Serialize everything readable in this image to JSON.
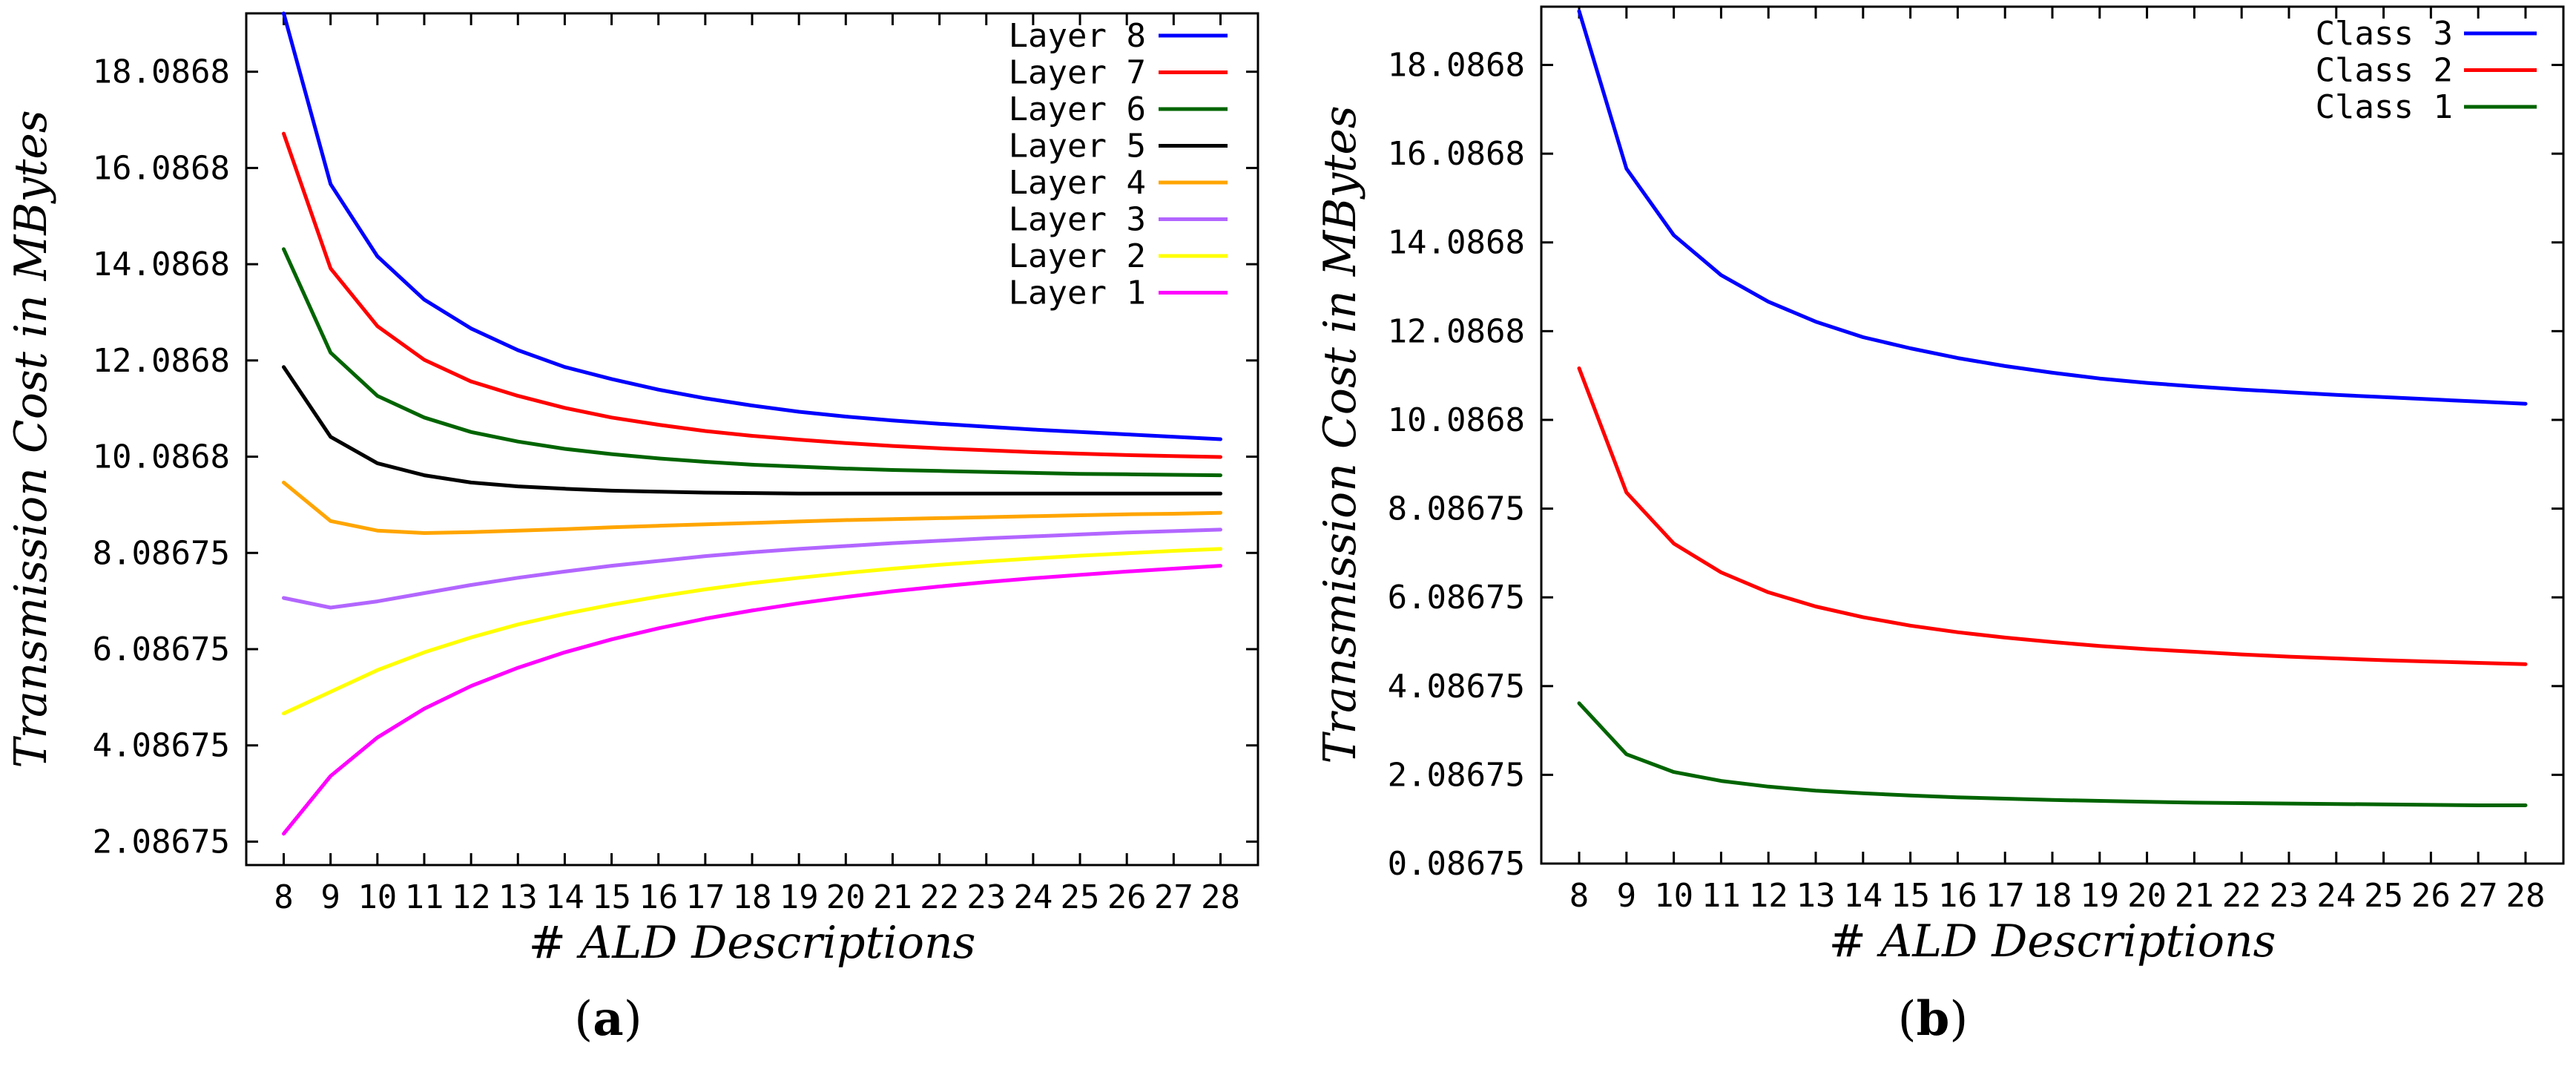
{
  "chart_data": [
    {
      "panel_caption": {
        "open": "(",
        "letter": "a",
        "close": ")"
      },
      "type": "line",
      "xlabel": "# ALD Descriptions",
      "ylabel": "Transmission Cost in MBytes",
      "xlim": [
        7.2,
        28.8
      ],
      "ylim": [
        1.6,
        19.3
      ],
      "x": [
        8,
        9,
        10,
        11,
        12,
        13,
        14,
        15,
        16,
        17,
        18,
        19,
        20,
        21,
        22,
        23,
        24,
        25,
        26,
        27,
        28
      ],
      "x_tick_labels": [
        "8",
        "9",
        "10",
        "11",
        "12",
        "13",
        "14",
        "15",
        "16",
        "17",
        "18",
        "19",
        "20",
        "21",
        "22",
        "23",
        "24",
        "25",
        "26",
        "27",
        "28"
      ],
      "y_ticks": [
        {
          "value": 2.08675,
          "label": "2.08675"
        },
        {
          "value": 4.08675,
          "label": "4.08675"
        },
        {
          "value": 6.08675,
          "label": "6.08675"
        },
        {
          "value": 8.08675,
          "label": "8.08675"
        },
        {
          "value": 10.0868,
          "label": "10.0868"
        },
        {
          "value": 12.0868,
          "label": "12.0868"
        },
        {
          "value": 14.0868,
          "label": "14.0868"
        },
        {
          "value": 16.0868,
          "label": "16.0868"
        },
        {
          "value": 18.0868,
          "label": "18.0868"
        }
      ],
      "legend_position": "top-right",
      "series": [
        {
          "name": "Layer 8",
          "color": "#0000ff",
          "values": [
            19.3,
            15.75,
            14.25,
            13.35,
            12.75,
            12.3,
            11.95,
            11.7,
            11.48,
            11.3,
            11.15,
            11.02,
            10.92,
            10.84,
            10.77,
            10.71,
            10.65,
            10.6,
            10.55,
            10.5,
            10.45
          ]
        },
        {
          "name": "Layer 7",
          "color": "#ff0000",
          "values": [
            16.8,
            14.0,
            12.8,
            12.1,
            11.65,
            11.35,
            11.1,
            10.9,
            10.75,
            10.62,
            10.52,
            10.44,
            10.37,
            10.31,
            10.26,
            10.22,
            10.18,
            10.15,
            10.12,
            10.1,
            10.08
          ]
        },
        {
          "name": "Layer 6",
          "color": "#006400",
          "values": [
            14.4,
            12.25,
            11.35,
            10.9,
            10.6,
            10.4,
            10.25,
            10.14,
            10.05,
            9.98,
            9.92,
            9.88,
            9.84,
            9.81,
            9.79,
            9.77,
            9.75,
            9.73,
            9.72,
            9.71,
            9.7
          ]
        },
        {
          "name": "Layer 5",
          "color": "#000000",
          "values": [
            11.95,
            10.5,
            9.95,
            9.7,
            9.55,
            9.47,
            9.42,
            9.38,
            9.36,
            9.34,
            9.33,
            9.32,
            9.32,
            9.32,
            9.32,
            9.32,
            9.32,
            9.32,
            9.32,
            9.32,
            9.32
          ]
        },
        {
          "name": "Layer 4",
          "color": "#ffa500",
          "values": [
            9.55,
            8.75,
            8.55,
            8.5,
            8.52,
            8.55,
            8.58,
            8.62,
            8.65,
            8.68,
            8.71,
            8.74,
            8.77,
            8.79,
            8.81,
            8.83,
            8.85,
            8.87,
            8.89,
            8.9,
            8.92
          ]
        },
        {
          "name": "Layer 3",
          "color": "#b266ff",
          "values": [
            7.15,
            6.95,
            7.08,
            7.25,
            7.42,
            7.57,
            7.7,
            7.82,
            7.92,
            8.02,
            8.1,
            8.17,
            8.23,
            8.29,
            8.34,
            8.39,
            8.43,
            8.47,
            8.51,
            8.54,
            8.57
          ]
        },
        {
          "name": "Layer 2",
          "color": "#ffff00",
          "values": [
            4.75,
            5.2,
            5.65,
            6.02,
            6.33,
            6.6,
            6.82,
            7.01,
            7.18,
            7.33,
            7.46,
            7.57,
            7.67,
            7.76,
            7.84,
            7.91,
            7.97,
            8.03,
            8.08,
            8.13,
            8.17
          ]
        },
        {
          "name": "Layer 1",
          "color": "#ff00ff",
          "values": [
            2.25,
            3.45,
            4.25,
            4.85,
            5.32,
            5.7,
            6.02,
            6.29,
            6.52,
            6.72,
            6.89,
            7.04,
            7.17,
            7.29,
            7.39,
            7.48,
            7.56,
            7.63,
            7.7,
            7.76,
            7.82
          ]
        }
      ]
    },
    {
      "panel_caption": {
        "open": "(",
        "letter": "b",
        "close": ")"
      },
      "type": "line",
      "xlabel": "# ALD Descriptions",
      "ylabel": "Transmission Cost in MBytes",
      "xlim": [
        7.2,
        28.8
      ],
      "ylim": [
        0.08675,
        19.4
      ],
      "x": [
        8,
        9,
        10,
        11,
        12,
        13,
        14,
        15,
        16,
        17,
        18,
        19,
        20,
        21,
        22,
        23,
        24,
        25,
        26,
        27,
        28
      ],
      "x_tick_labels": [
        "8",
        "9",
        "10",
        "11",
        "12",
        "13",
        "14",
        "15",
        "16",
        "17",
        "18",
        "19",
        "20",
        "21",
        "22",
        "23",
        "24",
        "25",
        "26",
        "27",
        "28"
      ],
      "y_ticks": [
        {
          "value": 0.08675,
          "label": "0.08675"
        },
        {
          "value": 2.08675,
          "label": "2.08675"
        },
        {
          "value": 4.08675,
          "label": "4.08675"
        },
        {
          "value": 6.08675,
          "label": "6.08675"
        },
        {
          "value": 8.08675,
          "label": "8.08675"
        },
        {
          "value": 10.0868,
          "label": "10.0868"
        },
        {
          "value": 12.0868,
          "label": "12.0868"
        },
        {
          "value": 14.0868,
          "label": "14.0868"
        },
        {
          "value": 16.0868,
          "label": "16.0868"
        },
        {
          "value": 18.0868,
          "label": "18.0868"
        }
      ],
      "legend_position": "top-right",
      "series": [
        {
          "name": "Class 3",
          "color": "#0000ff",
          "values": [
            19.3,
            15.75,
            14.25,
            13.35,
            12.75,
            12.3,
            11.95,
            11.7,
            11.48,
            11.3,
            11.15,
            11.02,
            10.92,
            10.84,
            10.77,
            10.71,
            10.65,
            10.6,
            10.55,
            10.5,
            10.45
          ]
        },
        {
          "name": "Class 2",
          "color": "#ff0000",
          "values": [
            11.25,
            8.45,
            7.3,
            6.65,
            6.2,
            5.88,
            5.64,
            5.45,
            5.3,
            5.18,
            5.08,
            4.99,
            4.92,
            4.86,
            4.8,
            4.75,
            4.71,
            4.67,
            4.64,
            4.61,
            4.58
          ]
        },
        {
          "name": "Class 1",
          "color": "#006400",
          "values": [
            3.7,
            2.55,
            2.15,
            1.95,
            1.82,
            1.73,
            1.67,
            1.62,
            1.58,
            1.55,
            1.52,
            1.5,
            1.48,
            1.46,
            1.45,
            1.44,
            1.43,
            1.42,
            1.41,
            1.4,
            1.4
          ]
        }
      ]
    }
  ]
}
